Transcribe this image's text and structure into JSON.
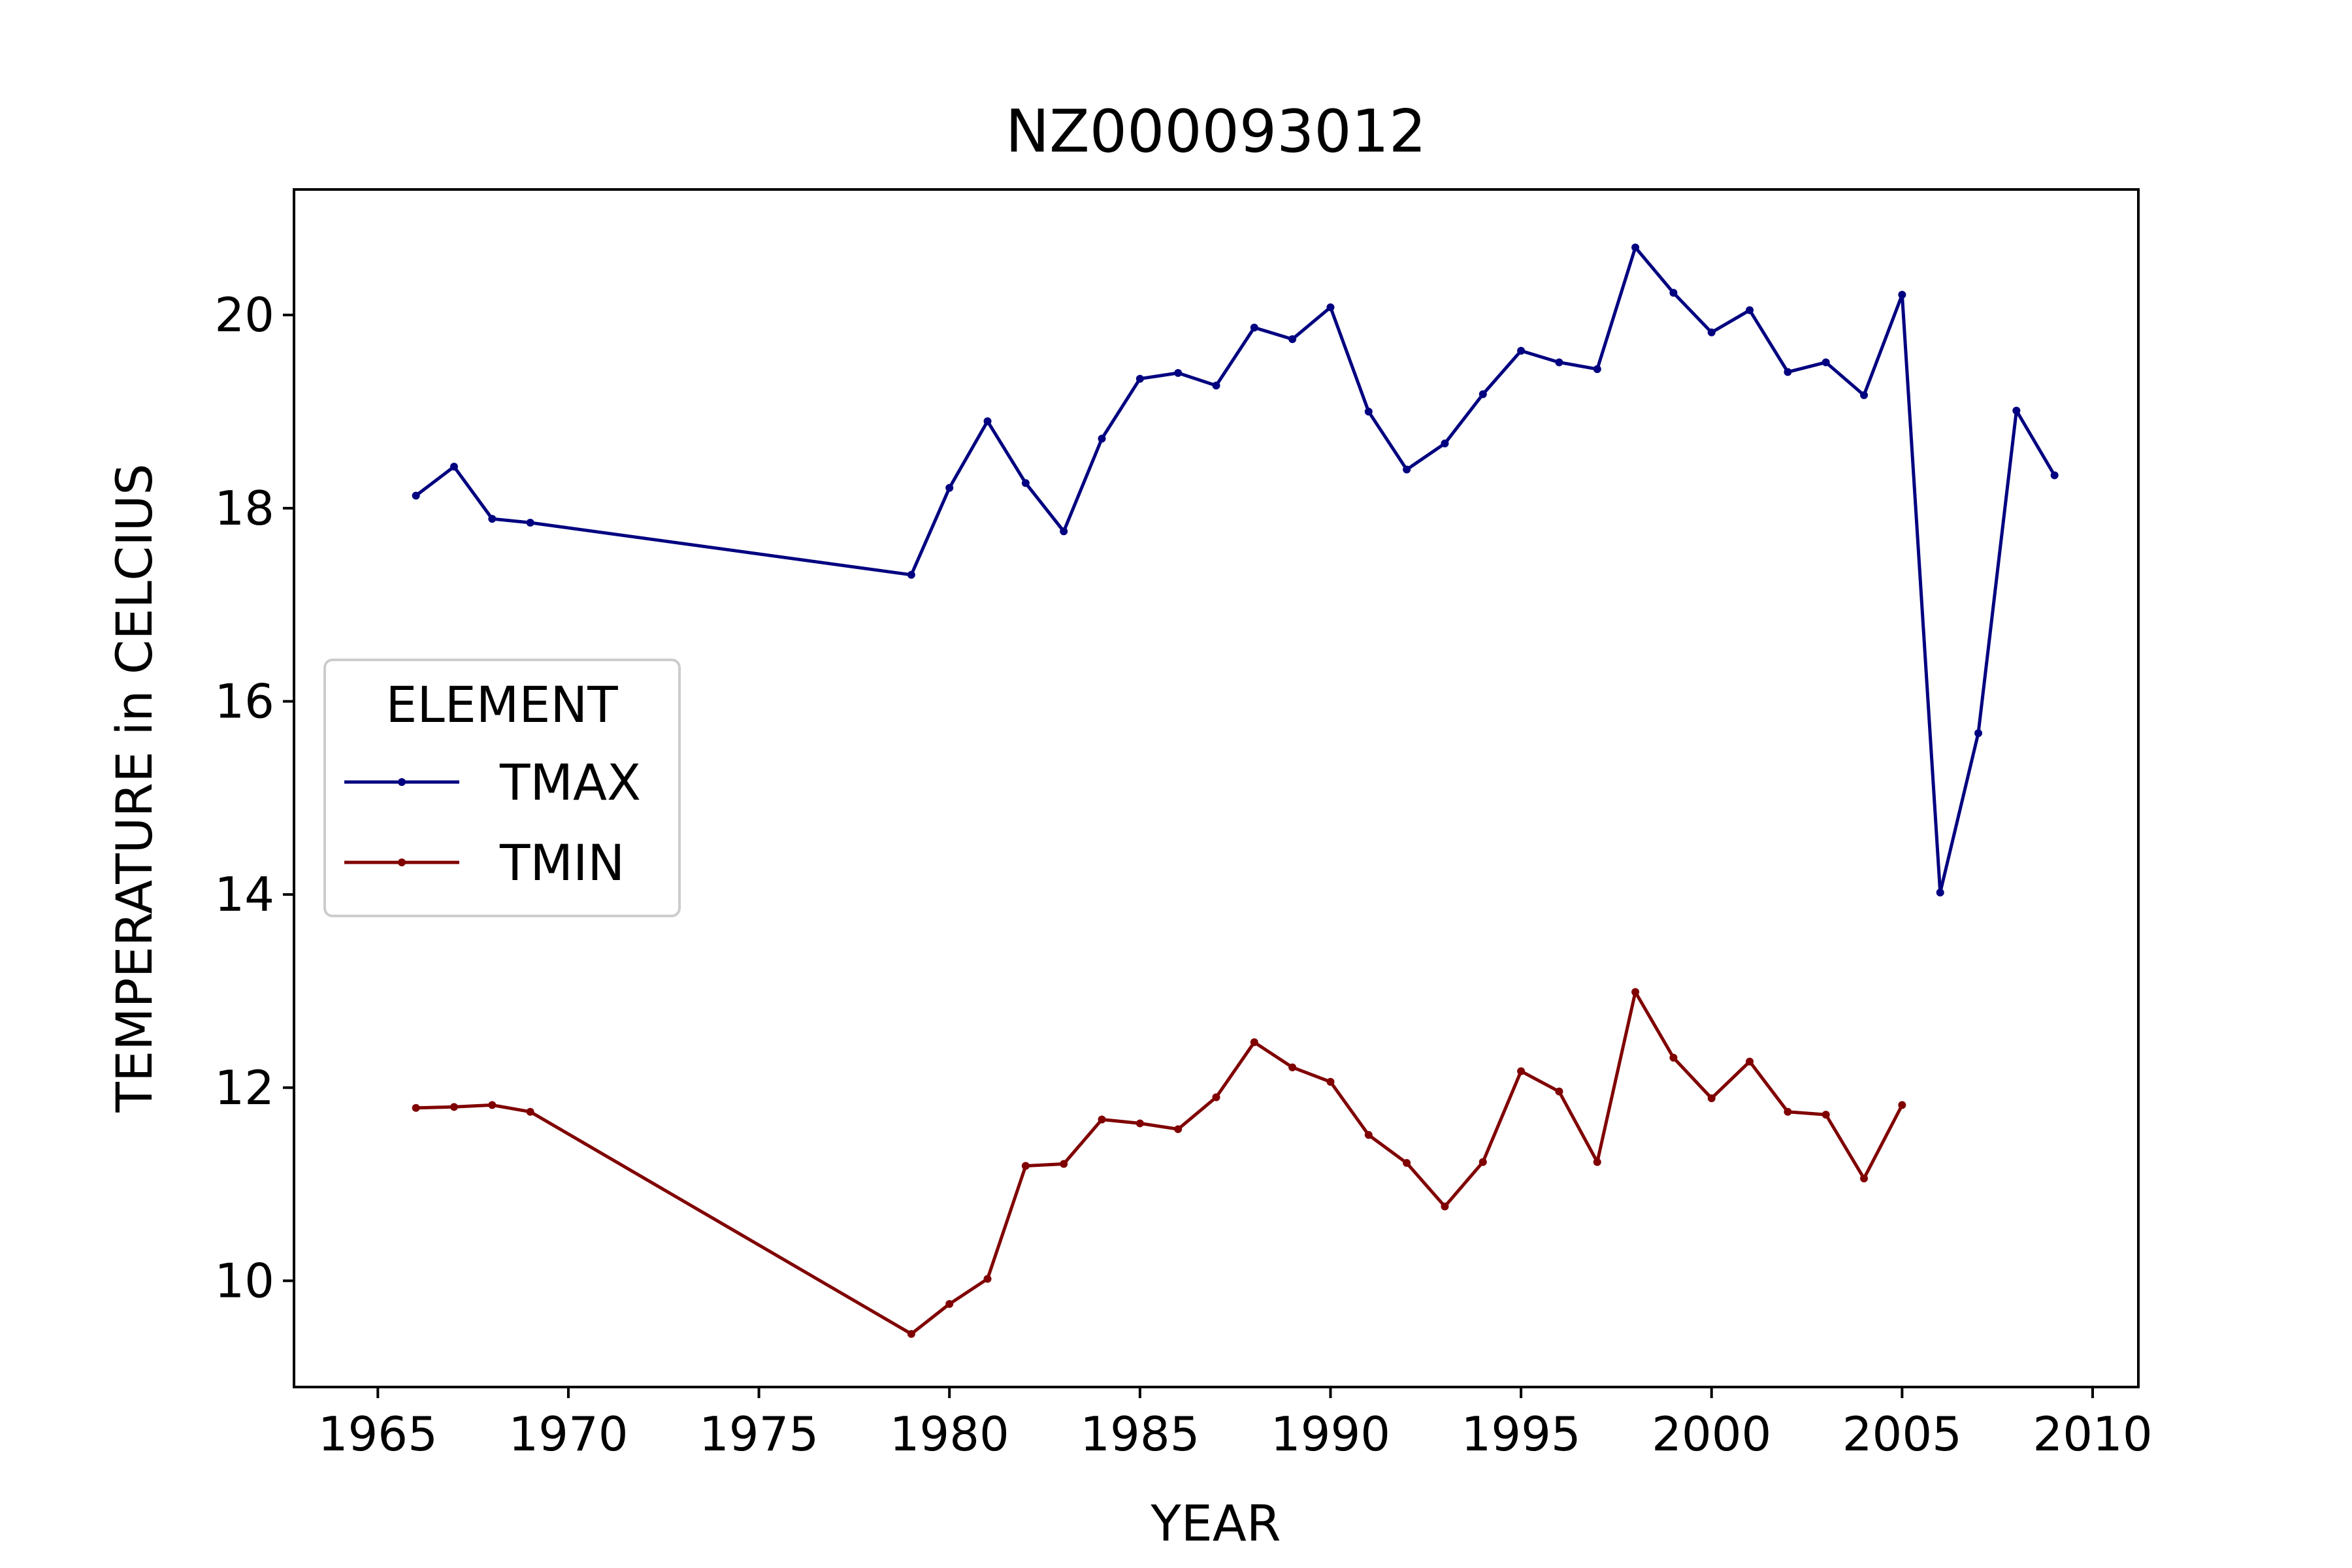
{
  "chart_data": {
    "type": "line",
    "title": "NZ000093012",
    "xlabel": "YEAR",
    "ylabel": "TEMPERATURE in CELCIUS",
    "xlim": [
      1962.8,
      2011.2
    ],
    "ylim": [
      8.9,
      21.3
    ],
    "x_ticks": [
      1965,
      1970,
      1975,
      1980,
      1985,
      1990,
      1995,
      2000,
      2005,
      2010
    ],
    "y_ticks": [
      10,
      12,
      14,
      16,
      18,
      20
    ],
    "grid": false,
    "legend": {
      "title": "ELEMENT",
      "placement": "center-left"
    },
    "series": [
      {
        "name": "TMAX",
        "color": "#000080",
        "marker": "point",
        "x": [
          1966,
          1967,
          1968,
          1969,
          1979,
          1980,
          1981,
          1982,
          1983,
          1984,
          1985,
          1986,
          1987,
          1988,
          1989,
          1990,
          1991,
          1992,
          1993,
          1994,
          1995,
          1996,
          1997,
          1998,
          1999,
          2000,
          2001,
          2002,
          2003,
          2004,
          2005,
          2006,
          2007,
          2008,
          2009
        ],
        "values": [
          18.13,
          18.43,
          17.89,
          17.85,
          17.31,
          18.21,
          18.9,
          18.26,
          17.76,
          18.72,
          19.34,
          19.4,
          19.27,
          19.87,
          19.75,
          20.08,
          19.0,
          18.4,
          18.67,
          19.18,
          19.63,
          19.51,
          19.44,
          20.7,
          20.23,
          19.82,
          20.05,
          19.41,
          19.51,
          19.17,
          20.21,
          14.02,
          15.67,
          19.01,
          18.34
        ]
      },
      {
        "name": "TMIN",
        "color": "#800000",
        "marker": "point",
        "x": [
          1966,
          1967,
          1968,
          1969,
          1979,
          1980,
          1981,
          1982,
          1983,
          1984,
          1985,
          1986,
          1987,
          1988,
          1989,
          1990,
          1991,
          1992,
          1993,
          1994,
          1995,
          1996,
          1997,
          1998,
          1999,
          2000,
          2001,
          2002,
          2003,
          2004,
          2005
        ],
        "values": [
          11.79,
          11.8,
          11.82,
          11.75,
          9.45,
          9.76,
          10.02,
          11.19,
          11.21,
          11.67,
          11.63,
          11.57,
          11.9,
          12.47,
          12.21,
          12.06,
          11.51,
          11.22,
          10.77,
          11.23,
          12.17,
          11.96,
          11.23,
          12.99,
          12.31,
          11.89,
          12.27,
          11.75,
          11.72,
          11.06,
          11.82
        ]
      }
    ]
  }
}
